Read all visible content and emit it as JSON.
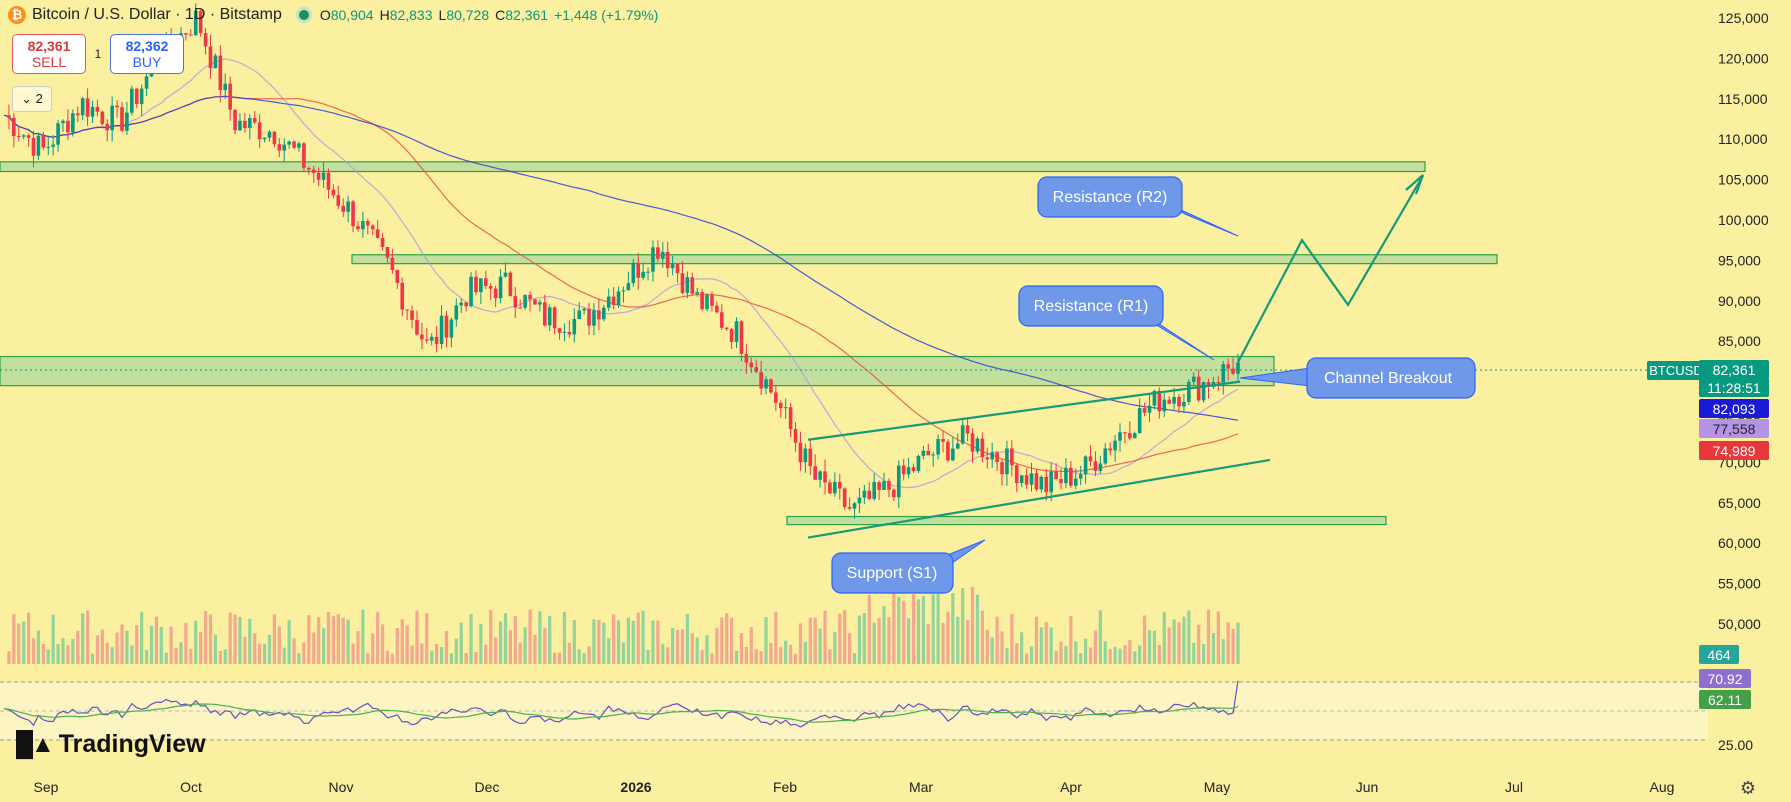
{
  "header": {
    "symbol_logo": "₿",
    "title": "Bitcoin / U.S. Dollar · 1D · Bitstamp",
    "open_key": "O",
    "open": "80,904",
    "high_key": "H",
    "high": "82,833",
    "low_key": "L",
    "low": "80,728",
    "close_key": "C",
    "close": "82,361",
    "change": "+1,448 (+1.79%)"
  },
  "trade": {
    "sell_price": "82,361",
    "sell_label": "SELL",
    "spread": "1",
    "buy_price": "82,362",
    "buy_label": "BUY"
  },
  "collapse_label": "⌄ 2",
  "price_axis": [
    "125,000",
    "120,000",
    "115,000",
    "110,000",
    "105,000",
    "100,000",
    "95,000",
    "90,000",
    "85,000",
    "80,000",
    "75,000",
    "70,000",
    "65,000",
    "60,000",
    "55,000",
    "50,000"
  ],
  "rsi_axis": "25.00",
  "time_axis": [
    "Sep",
    "Oct",
    "Nov",
    "Dec",
    "2026",
    "Feb",
    "Mar",
    "Apr",
    "May",
    "Jun",
    "Jul",
    "Aug"
  ],
  "price_tags": {
    "symbol": "BTCUSD",
    "last": "82,361",
    "countdown": "11:28:51",
    "ma_fast": "82,093",
    "ma_mid": "77,558",
    "ma_slow": "74,989",
    "volume": "464",
    "rsi": "70.92",
    "rsi_ma": "62.11"
  },
  "colors": {
    "background": "#fbefa0",
    "up": "#089981",
    "down": "#f23645",
    "zone_fill": "#b9dc9c",
    "zone_stroke": "#2ea043",
    "callout_fill": "#6f98e8",
    "ma_fast": "#2234d8",
    "ma_mid": "#b594e8",
    "ma_slow": "#e84a3c",
    "rsi_line": "#6a4fc2",
    "rsi_ma": "#4caf50"
  },
  "annotations": {
    "r2": "Resistance (R2)",
    "r1": "Resistance (R1)",
    "breakout": "Channel Breakout",
    "s1": "Support (S1)"
  },
  "logo": "TradingView",
  "chart_data": {
    "type": "candlestick",
    "title": "Bitcoin / U.S. Dollar · 1D · Bitstamp",
    "y_range": [
      46000,
      127000
    ],
    "x_ticks": [
      "Sep",
      "Oct",
      "Nov",
      "Dec",
      "2026",
      "Feb",
      "Mar",
      "Apr",
      "May",
      "Jun",
      "Jul",
      "Aug"
    ],
    "close_path": [
      [
        "Sep",
        113000
      ],
      [
        "Sep",
        108500
      ],
      [
        "Sep",
        114500
      ],
      [
        "Sep",
        112000
      ],
      [
        "Oct",
        120000
      ],
      [
        "Oct",
        125000
      ],
      [
        "Oct",
        112000
      ],
      [
        "Oct",
        111000
      ],
      [
        "Nov",
        106000
      ],
      [
        "Nov",
        101000
      ],
      [
        "Nov",
        94000
      ],
      [
        "Nov",
        84000
      ],
      [
        "Dec",
        91000
      ],
      [
        "Dec",
        92000
      ],
      [
        "Dec",
        88000
      ],
      [
        "Dec",
        87500
      ],
      [
        "2026",
        92000
      ],
      [
        "2026",
        97000
      ],
      [
        "2026",
        90000
      ],
      [
        "2026",
        86000
      ],
      [
        "Feb",
        78000
      ],
      [
        "Feb",
        68000
      ],
      [
        "Feb",
        64000
      ],
      [
        "Feb",
        67000
      ],
      [
        "Mar",
        71000
      ],
      [
        "Mar",
        73000
      ],
      [
        "Mar",
        70000
      ],
      [
        "Mar",
        67000
      ],
      [
        "Apr",
        69000
      ],
      [
        "Apr",
        74000
      ],
      [
        "Apr",
        78000
      ],
      [
        "Apr",
        79500
      ],
      [
        "May",
        82361
      ]
    ],
    "zones": [
      {
        "name": "Resistance (R2)",
        "from": 106000,
        "to": 107200
      },
      {
        "name": "Resistance (R1)",
        "from": 94600,
        "to": 95700
      },
      {
        "name": "Channel Breakout",
        "from": 79500,
        "to": 83100
      },
      {
        "name": "Support (S1)",
        "from": 62300,
        "to": 63300
      }
    ],
    "channel": {
      "upper": [
        [
          "Feb",
          72800
        ],
        [
          "May",
          80000
        ]
      ],
      "lower": [
        [
          "Feb",
          60700
        ],
        [
          "May",
          70300
        ]
      ]
    },
    "projection": [
      82400,
      97500,
      89500,
      105500
    ],
    "last_close": 82361,
    "moving_averages": [
      {
        "name": "MA fast",
        "last": 82093
      },
      {
        "name": "MA mid",
        "last": 77558
      },
      {
        "name": "MA slow",
        "last": 74989
      }
    ],
    "volume_last": 464,
    "rsi": {
      "last": 70.92,
      "ma": 62.11,
      "levels": [
        70,
        50,
        30
      ]
    }
  }
}
